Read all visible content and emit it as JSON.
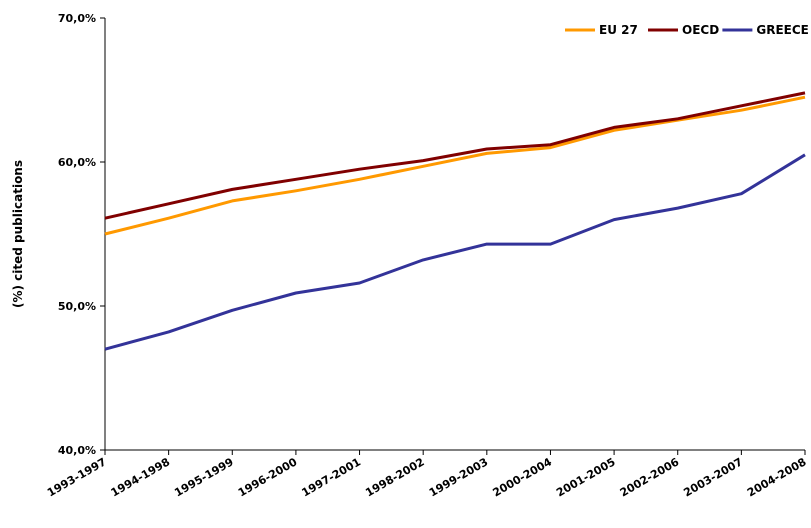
{
  "chart_data": {
    "type": "line",
    "title": "",
    "xlabel": "",
    "ylabel": "(%) cited publications",
    "ylim": [
      40,
      70
    ],
    "yticks": [
      "40,0%",
      "50,0%",
      "60,0%",
      "70,0%"
    ],
    "ytick_values": [
      40,
      50,
      60,
      70
    ],
    "grid": false,
    "legend_position": "top-right",
    "categories": [
      "1993-1997",
      "1994-1998",
      "1995-1999",
      "1996-2000",
      "1997-2001",
      "1998-2002",
      "1999-2003",
      "2000-2004",
      "2001-2005",
      "2002-2006",
      "2003-2007",
      "2004-2008"
    ],
    "series": [
      {
        "name": "EU 27",
        "color": "#FF9900",
        "values": [
          55.0,
          56.1,
          57.3,
          58.0,
          58.8,
          59.7,
          60.6,
          61.0,
          62.2,
          62.9,
          63.6,
          64.5
        ]
      },
      {
        "name": "OECD",
        "color": "#800000",
        "values": [
          56.1,
          57.1,
          58.1,
          58.8,
          59.5,
          60.1,
          60.9,
          61.2,
          62.4,
          63.0,
          63.9,
          64.8
        ]
      },
      {
        "name": "GREECE",
        "color": "#333399",
        "values": [
          47.0,
          48.2,
          49.7,
          50.9,
          51.6,
          53.2,
          54.3,
          54.3,
          56.0,
          56.8,
          57.8,
          60.5
        ]
      }
    ]
  }
}
